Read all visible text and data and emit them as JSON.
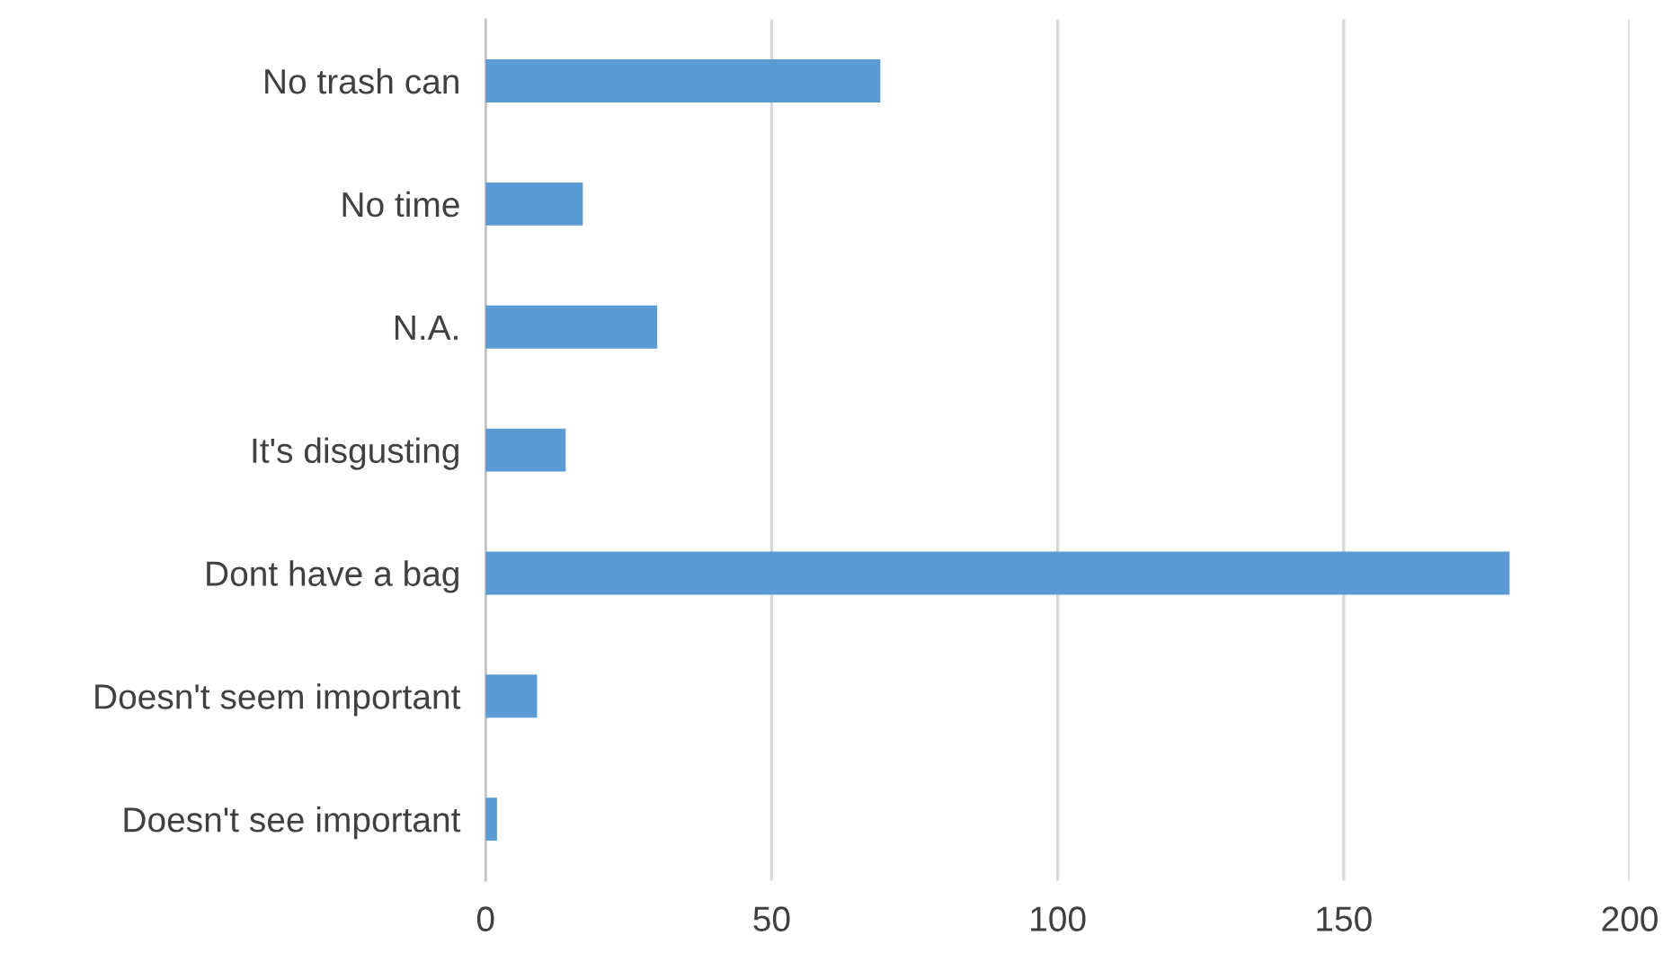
{
  "chart_data": {
    "type": "bar",
    "orientation": "horizontal",
    "categories": [
      "No trash can",
      "No time",
      "N.A.",
      "It's disgusting",
      "Dont have a bag",
      "Doesn't seem important",
      "Doesn't see important"
    ],
    "values": [
      69,
      17,
      30,
      14,
      179,
      9,
      2
    ],
    "color": "#5b9bd5",
    "xlim": [
      0,
      200
    ],
    "xticks": [
      0,
      50,
      100,
      150,
      200
    ],
    "grid": "x"
  }
}
